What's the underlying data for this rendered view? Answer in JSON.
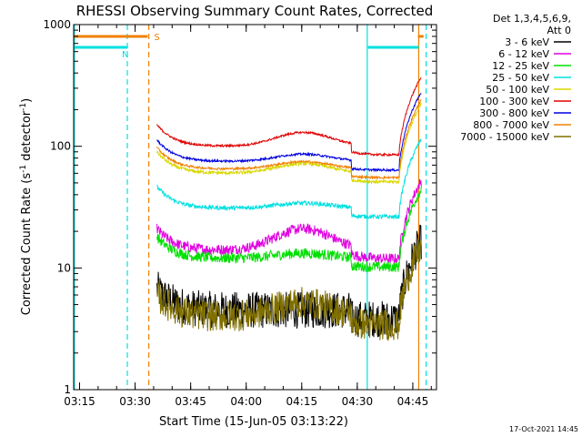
{
  "chart_data": {
    "type": "line",
    "title": "RHESSI Observing Summary Count Rates, Corrected",
    "xlabel": "Start Time (15-Jun-05 03:13:22)",
    "ylabel": "Corrected Count Rate (s⁻¹ detector⁻¹)",
    "ylabel_main": "Corrected Count Rate (s",
    "ylabel_sup1": "-1",
    "ylabel_mid": " detector",
    "ylabel_sup2": "-1",
    "ylabel_end": ")",
    "y_scale": "log",
    "ylim": [
      1,
      1000
    ],
    "xlim_minutes": [
      0,
      98
    ],
    "x_ticks": [
      {
        "label": "03:15",
        "min": 1.6
      },
      {
        "label": "03:30",
        "min": 16.6
      },
      {
        "label": "03:45",
        "min": 31.6
      },
      {
        "label": "04:00",
        "min": 46.6
      },
      {
        "label": "04:15",
        "min": 61.6
      },
      {
        "label": "04:30",
        "min": 76.6
      },
      {
        "label": "04:45",
        "min": 91.6
      }
    ],
    "y_ticks": [
      {
        "label": "1",
        "v": 1
      },
      {
        "label": "10",
        "v": 10
      },
      {
        "label": "100",
        "v": 100
      },
      {
        "label": "1000",
        "v": 1000
      }
    ],
    "legend_header": [
      "Det 1,3,4,5,6,9,",
      "Att 0"
    ],
    "series": [
      {
        "name": "3 - 6 keV",
        "color": "#000000",
        "base": 4.5,
        "noise": 0.35,
        "bump": 1.0
      },
      {
        "name": "6 - 12 keV",
        "color": "#e000e0",
        "base": 14,
        "noise": 0.1,
        "bump": 1.5
      },
      {
        "name": "12 - 25 keV",
        "color": "#00e000",
        "base": 12,
        "noise": 0.1,
        "bump": 1.1
      },
      {
        "name": "25 - 50 keV",
        "color": "#00e0e0",
        "base": 31,
        "noise": 0.04,
        "bump": 1.1
      },
      {
        "name": "50 - 100 keV",
        "color": "#d8d800",
        "base": 60,
        "noise": 0.03,
        "bump": 1.2
      },
      {
        "name": "100 - 300 keV",
        "color": "#e00000",
        "base": 100,
        "noise": 0.02,
        "bump": 1.3
      },
      {
        "name": "300 - 800 keV",
        "color": "#0000e0",
        "base": 75,
        "noise": 0.02,
        "bump": 1.15
      },
      {
        "name": "800 - 7000 keV",
        "color": "#f08000",
        "base": 65,
        "noise": 0.02,
        "bump": 1.15
      },
      {
        "name": "7000 - 15000 keV",
        "color": "#807000",
        "base": 4,
        "noise": 0.3,
        "bump": 1.3
      }
    ],
    "data_window_minutes": [
      22.5,
      94
    ],
    "flags": [
      {
        "label": "S",
        "color": "#f08000",
        "level": 800,
        "segments": [
          [
            0,
            20
          ],
          [
            93,
            94.5
          ]
        ]
      },
      {
        "label": "N",
        "color": "#00e0e0",
        "level": 650,
        "segments": [
          [
            0,
            14.5
          ],
          [
            79.5,
            93.2
          ]
        ]
      }
    ],
    "vertical_lines": [
      {
        "min": 0.2,
        "color": "#00e0e0",
        "style": "solid"
      },
      {
        "min": 14.5,
        "color": "#00e0e0",
        "style": "dashed"
      },
      {
        "min": 20.3,
        "color": "#f08000",
        "style": "dashed"
      },
      {
        "min": 79.3,
        "color": "#00e0e0",
        "style": "solid"
      },
      {
        "min": 93.2,
        "color": "#f08000",
        "style": "solid"
      },
      {
        "min": 95.2,
        "color": "#00e0e0",
        "style": "dashed"
      }
    ]
  },
  "footer": {
    "date_stamp": "17-Oct-2021 14:45"
  }
}
